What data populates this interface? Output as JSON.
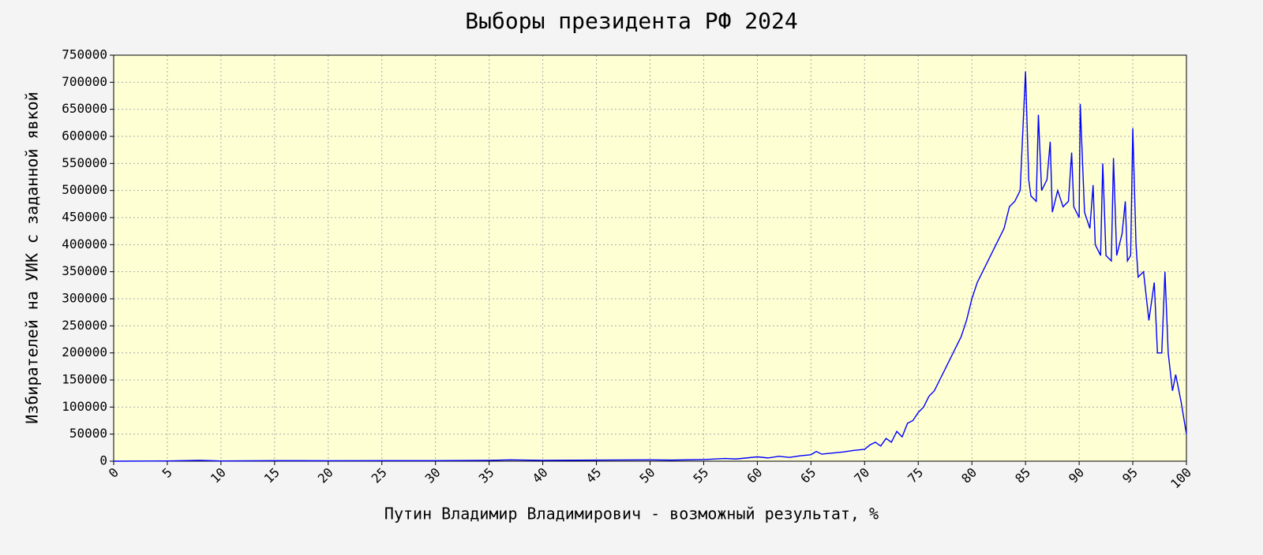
{
  "chart_data": {
    "type": "line",
    "title": "Выборы президента РФ 2024",
    "x_label": "Путин Владимир Владимирович - возможный результат, %",
    "y_label": "Избирателей на УИК с заданной явкой",
    "color": "#0000ff",
    "grid": true,
    "x": [
      0,
      5,
      8,
      10,
      15,
      20,
      25,
      30,
      35,
      37,
      40,
      45,
      50,
      52,
      55,
      57,
      58,
      60,
      61,
      62,
      63,
      64,
      65,
      65.5,
      66,
      67,
      68,
      69,
      70,
      70.5,
      71,
      71.5,
      72,
      72.5,
      73,
      73.5,
      74,
      74.5,
      75,
      75.5,
      76,
      76.5,
      77,
      77.5,
      78,
      78.5,
      79,
      79.5,
      80,
      80.5,
      81,
      81.5,
      82,
      82.5,
      83,
      83.5,
      84,
      84.5,
      85,
      85.3,
      85.5,
      86,
      86.2,
      86.5,
      87,
      87.3,
      87.5,
      88,
      88.5,
      89,
      89.3,
      89.5,
      90,
      90.1,
      90.5,
      91,
      91.3,
      91.5,
      92,
      92.2,
      92.5,
      93,
      93.2,
      93.5,
      94,
      94.3,
      94.5,
      94.8,
      95,
      95.3,
      95.5,
      96,
      96.5,
      97,
      97.3,
      97.7,
      98,
      98.3,
      98.7,
      99,
      99.5,
      100
    ],
    "values": [
      0,
      500,
      1500,
      500,
      1000,
      800,
      1000,
      1000,
      1500,
      2500,
      1500,
      2000,
      2500,
      2000,
      3000,
      5000,
      4000,
      8000,
      6000,
      9000,
      7000,
      10000,
      12000,
      18000,
      13000,
      15000,
      17000,
      20000,
      22000,
      30000,
      35000,
      28000,
      42000,
      35000,
      55000,
      45000,
      70000,
      75000,
      90000,
      100000,
      120000,
      130000,
      150000,
      170000,
      190000,
      210000,
      230000,
      260000,
      300000,
      330000,
      350000,
      370000,
      390000,
      410000,
      430000,
      470000,
      480000,
      500000,
      720000,
      520000,
      490000,
      480000,
      640000,
      500000,
      520000,
      590000,
      460000,
      500000,
      470000,
      480000,
      570000,
      470000,
      450000,
      660000,
      460000,
      430000,
      510000,
      400000,
      380000,
      550000,
      380000,
      370000,
      560000,
      380000,
      420000,
      480000,
      370000,
      380000,
      615000,
      400000,
      340000,
      350000,
      260000,
      330000,
      200000,
      200000,
      350000,
      200000,
      130000,
      160000,
      110000,
      50000
    ],
    "xlim": [
      0,
      100
    ],
    "ylim": [
      0,
      750000
    ],
    "xticks": [
      0,
      5,
      10,
      15,
      20,
      25,
      30,
      35,
      40,
      45,
      50,
      55,
      60,
      65,
      70,
      75,
      80,
      85,
      90,
      95,
      100
    ],
    "yticks": [
      0,
      50000,
      100000,
      150000,
      200000,
      250000,
      300000,
      350000,
      400000,
      450000,
      500000,
      550000,
      600000,
      650000,
      700000,
      750000
    ]
  }
}
